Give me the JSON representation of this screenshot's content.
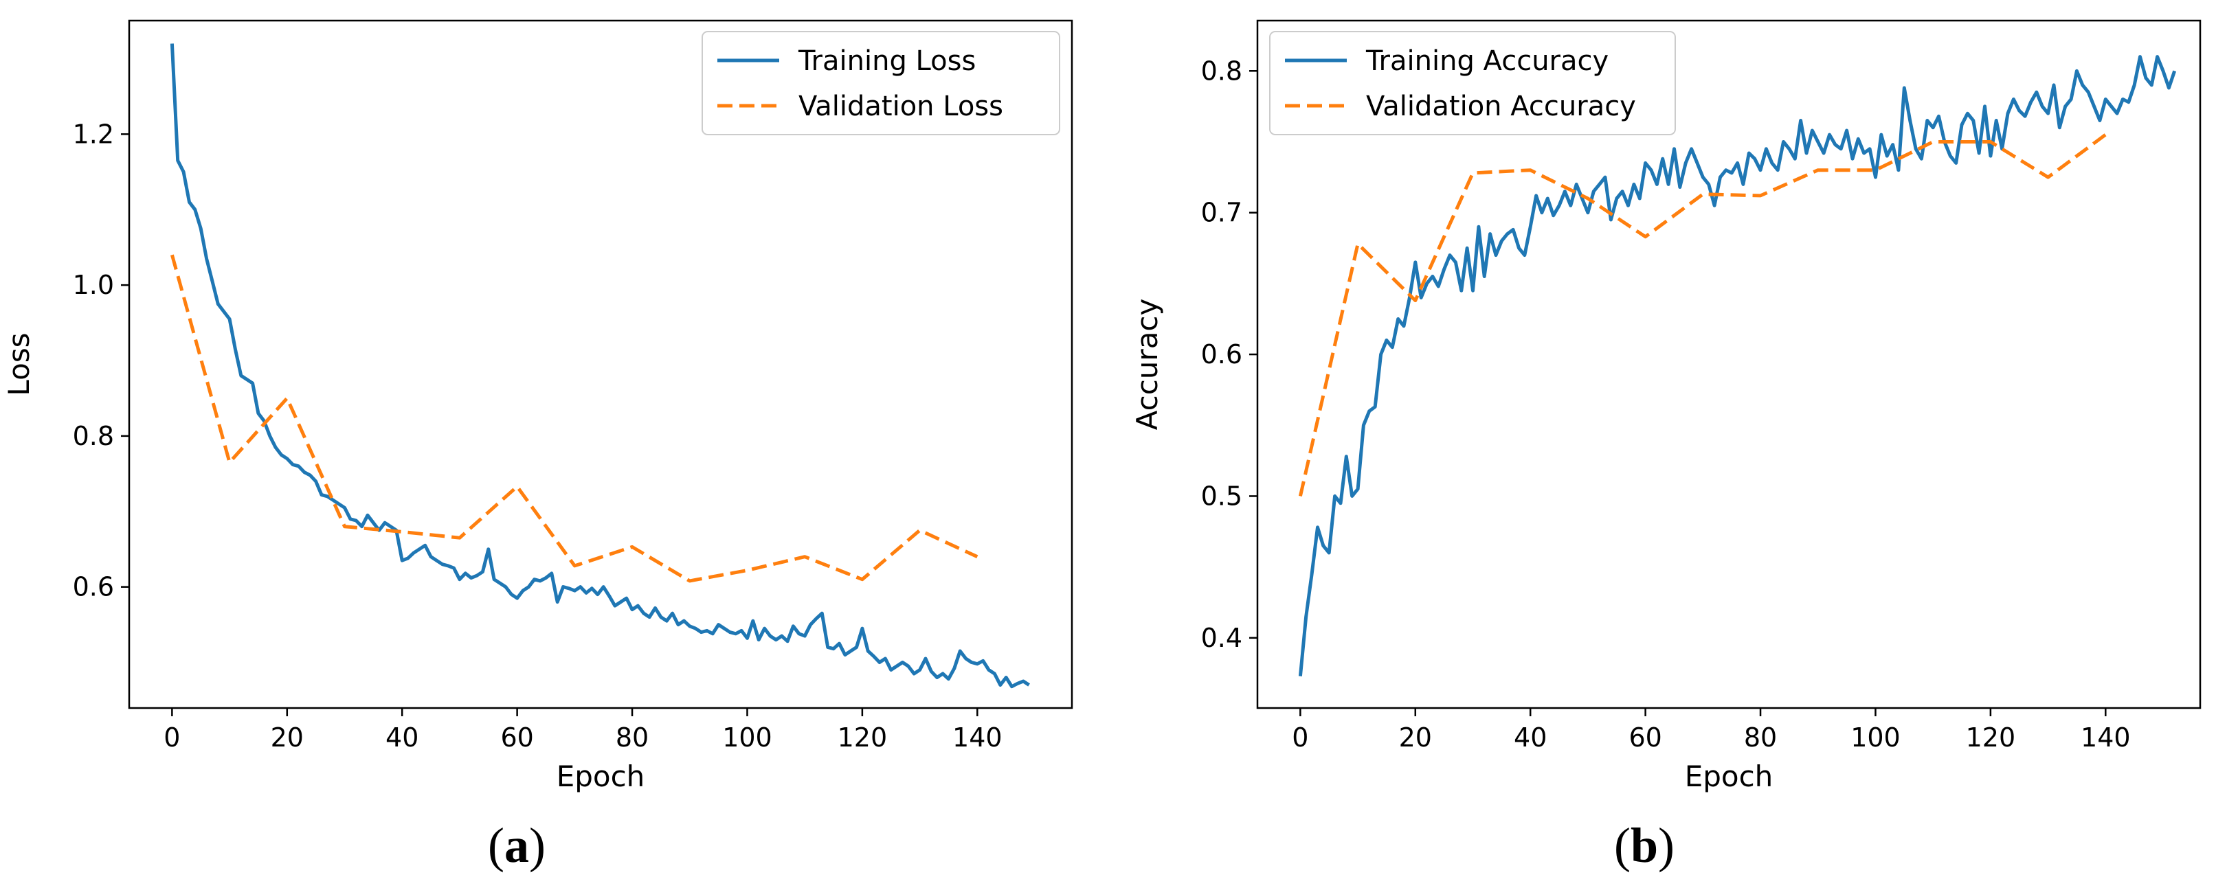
{
  "colors": {
    "training": "#1f77b4",
    "validation": "#ff7f0e",
    "axes": "#000000",
    "legend_border": "#cccccc"
  },
  "chart_data": [
    {
      "id": "a",
      "type": "line",
      "caption": {
        "open": "(",
        "letter": "a",
        "close": ")"
      },
      "xlabel": "Epoch",
      "ylabel": "Loss",
      "xlim": [
        -7.45,
        156.45
      ],
      "ylim": [
        0.4395,
        1.3505
      ],
      "xticks": [
        0,
        20,
        40,
        60,
        80,
        100,
        120,
        140
      ],
      "yticks": [
        0.6,
        0.8,
        1.0,
        1.2
      ],
      "ytick_labels": [
        "0.6",
        "0.8",
        "1.0",
        "1.2"
      ],
      "xtick_labels": [
        "0",
        "20",
        "40",
        "60",
        "80",
        "100",
        "120",
        "140"
      ],
      "legend_position": "top-right",
      "series": [
        {
          "name": "Training Loss",
          "style": "solid",
          "x_start": 0,
          "values": [
            1.32,
            1.165,
            1.15,
            1.11,
            1.1,
            1.075,
            1.035,
            1.005,
            0.975,
            0.965,
            0.955,
            0.915,
            0.88,
            0.875,
            0.87,
            0.83,
            0.82,
            0.8,
            0.785,
            0.775,
            0.77,
            0.762,
            0.76,
            0.752,
            0.748,
            0.74,
            0.722,
            0.72,
            0.715,
            0.71,
            0.705,
            0.69,
            0.688,
            0.68,
            0.695,
            0.685,
            0.675,
            0.685,
            0.68,
            0.675,
            0.635,
            0.638,
            0.645,
            0.65,
            0.655,
            0.64,
            0.635,
            0.63,
            0.628,
            0.625,
            0.61,
            0.618,
            0.612,
            0.615,
            0.62,
            0.65,
            0.61,
            0.605,
            0.6,
            0.59,
            0.585,
            0.595,
            0.6,
            0.61,
            0.608,
            0.612,
            0.618,
            0.58,
            0.6,
            0.598,
            0.595,
            0.6,
            0.592,
            0.598,
            0.59,
            0.6,
            0.588,
            0.575,
            0.58,
            0.585,
            0.57,
            0.575,
            0.565,
            0.56,
            0.572,
            0.56,
            0.555,
            0.565,
            0.55,
            0.555,
            0.548,
            0.545,
            0.54,
            0.542,
            0.538,
            0.55,
            0.545,
            0.54,
            0.538,
            0.542,
            0.532,
            0.555,
            0.53,
            0.545,
            0.535,
            0.53,
            0.535,
            0.528,
            0.548,
            0.538,
            0.535,
            0.55,
            0.558,
            0.565,
            0.52,
            0.518,
            0.525,
            0.51,
            0.515,
            0.52,
            0.545,
            0.515,
            0.508,
            0.5,
            0.505,
            0.49,
            0.495,
            0.5,
            0.495,
            0.485,
            0.49,
            0.505,
            0.488,
            0.48,
            0.485,
            0.478,
            0.492,
            0.515,
            0.505,
            0.5,
            0.498,
            0.502,
            0.49,
            0.485,
            0.47,
            0.48,
            0.468,
            0.472,
            0.475,
            0.47
          ]
        },
        {
          "name": "Validation Loss",
          "style": "dashed",
          "x": [
            0,
            10,
            20,
            30,
            40,
            50,
            60,
            70,
            80,
            90,
            100,
            110,
            120,
            130,
            140
          ],
          "values": [
            1.04,
            0.765,
            0.85,
            0.68,
            0.673,
            0.665,
            0.733,
            0.628,
            0.653,
            0.608,
            0.622,
            0.64,
            0.61,
            0.675,
            0.64
          ]
        }
      ]
    },
    {
      "id": "b",
      "type": "line",
      "caption": {
        "open": "(",
        "letter": "b",
        "close": ")"
      },
      "xlabel": "Epoch",
      "ylabel": "Accuracy",
      "xlim": [
        -7.45,
        156.45
      ],
      "ylim": [
        0.3505,
        0.8355
      ],
      "xticks": [
        0,
        20,
        40,
        60,
        80,
        100,
        120,
        140
      ],
      "yticks": [
        0.4,
        0.5,
        0.6,
        0.7,
        0.8
      ],
      "ytick_labels": [
        "0.4",
        "0.5",
        "0.6",
        "0.7",
        "0.8"
      ],
      "xtick_labels": [
        "0",
        "20",
        "40",
        "60",
        "80",
        "100",
        "120",
        "140"
      ],
      "legend_position": "top-left",
      "series": [
        {
          "name": "Training Accuracy",
          "style": "solid",
          "x_start": 0,
          "values": [
            0.373,
            0.415,
            0.445,
            0.478,
            0.465,
            0.46,
            0.5,
            0.495,
            0.528,
            0.5,
            0.505,
            0.55,
            0.56,
            0.563,
            0.6,
            0.61,
            0.605,
            0.625,
            0.62,
            0.64,
            0.665,
            0.64,
            0.65,
            0.655,
            0.648,
            0.66,
            0.67,
            0.665,
            0.645,
            0.675,
            0.645,
            0.69,
            0.655,
            0.685,
            0.67,
            0.68,
            0.685,
            0.688,
            0.675,
            0.67,
            0.69,
            0.712,
            0.7,
            0.71,
            0.698,
            0.705,
            0.715,
            0.705,
            0.72,
            0.71,
            0.7,
            0.715,
            0.72,
            0.725,
            0.695,
            0.71,
            0.715,
            0.705,
            0.72,
            0.71,
            0.735,
            0.73,
            0.72,
            0.738,
            0.72,
            0.745,
            0.718,
            0.735,
            0.745,
            0.735,
            0.725,
            0.72,
            0.705,
            0.725,
            0.73,
            0.728,
            0.735,
            0.72,
            0.742,
            0.738,
            0.73,
            0.745,
            0.735,
            0.73,
            0.75,
            0.745,
            0.738,
            0.765,
            0.742,
            0.758,
            0.75,
            0.742,
            0.755,
            0.748,
            0.745,
            0.758,
            0.738,
            0.752,
            0.742,
            0.745,
            0.725,
            0.755,
            0.74,
            0.748,
            0.73,
            0.788,
            0.765,
            0.745,
            0.738,
            0.765,
            0.76,
            0.768,
            0.75,
            0.74,
            0.735,
            0.762,
            0.77,
            0.765,
            0.742,
            0.775,
            0.74,
            0.765,
            0.745,
            0.77,
            0.78,
            0.772,
            0.768,
            0.778,
            0.785,
            0.775,
            0.77,
            0.79,
            0.76,
            0.775,
            0.78,
            0.8,
            0.79,
            0.785,
            0.775,
            0.765,
            0.78,
            0.775,
            0.77,
            0.78,
            0.778,
            0.79,
            0.81,
            0.795,
            0.79,
            0.81,
            0.8,
            0.788,
            0.8
          ]
        },
        {
          "name": "Validation Accuracy",
          "style": "dashed",
          "x": [
            0,
            10,
            20,
            30,
            40,
            50,
            60,
            70,
            80,
            90,
            100,
            110,
            120,
            130,
            140
          ],
          "values": [
            0.5,
            0.678,
            0.638,
            0.728,
            0.73,
            0.71,
            0.683,
            0.713,
            0.712,
            0.73,
            0.73,
            0.75,
            0.75,
            0.725,
            0.755
          ]
        }
      ]
    }
  ]
}
